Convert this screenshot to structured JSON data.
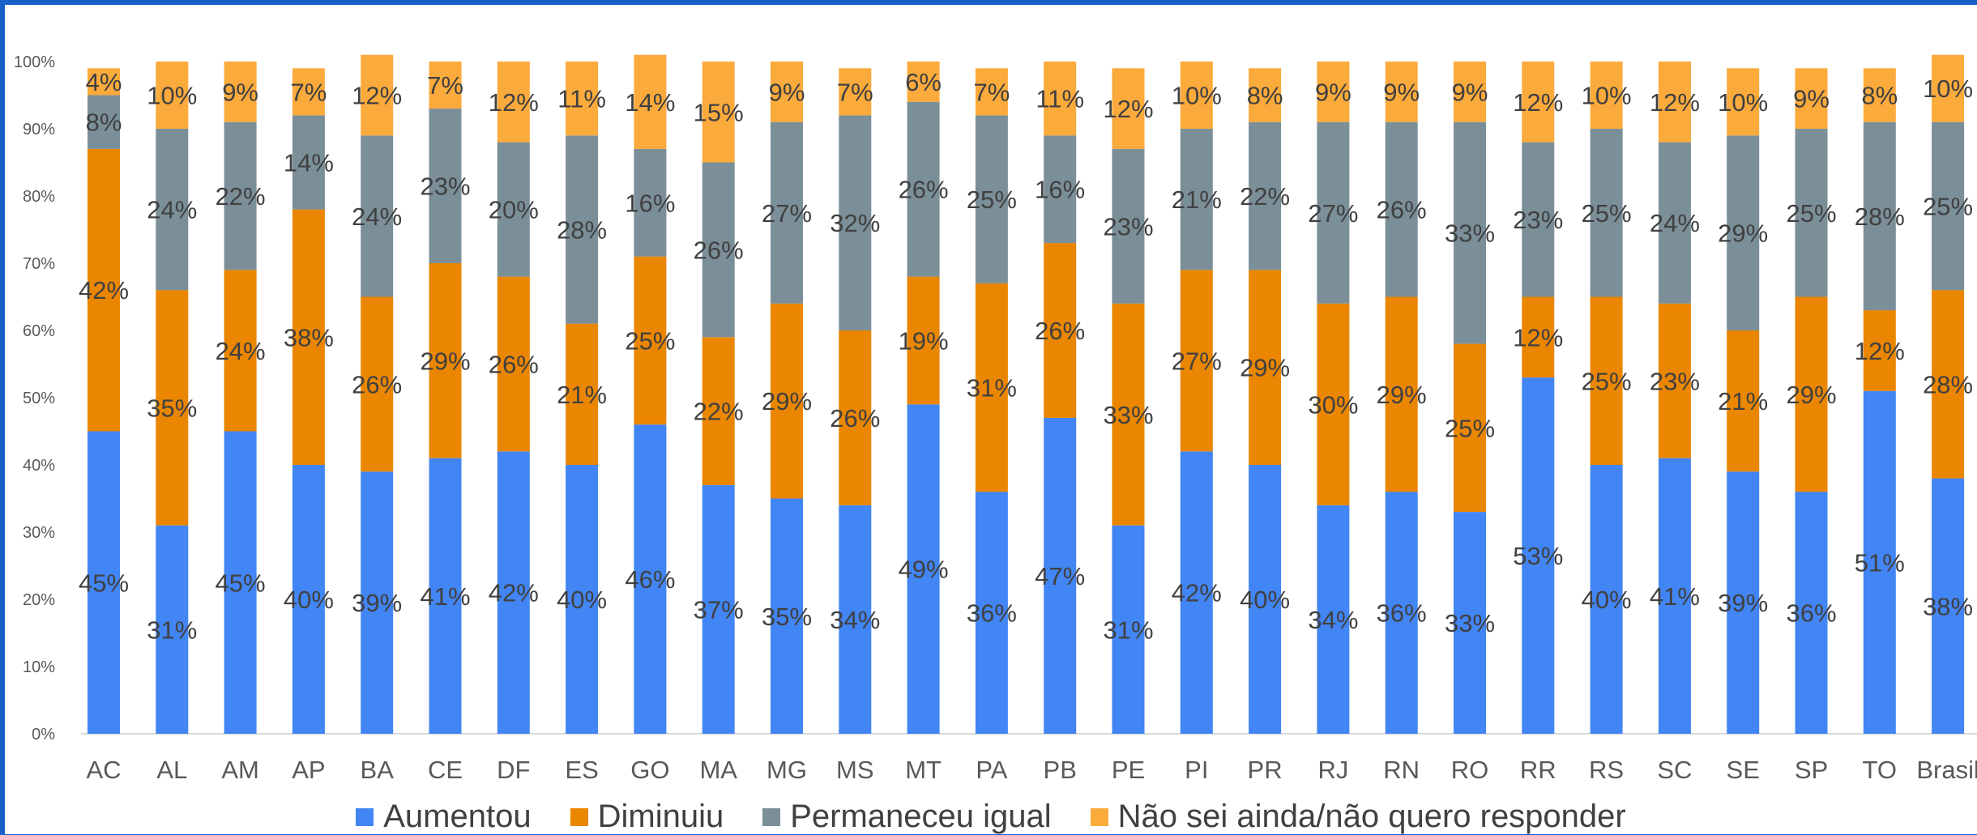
{
  "chart_data": {
    "type": "bar",
    "stacked": true,
    "categories": [
      "AC",
      "AL",
      "AM",
      "AP",
      "BA",
      "CE",
      "DF",
      "ES",
      "GO",
      "MA",
      "MG",
      "MS",
      "MT",
      "PA",
      "PB",
      "PE",
      "PI",
      "PR",
      "RJ",
      "RN",
      "RO",
      "RR",
      "RS",
      "SC",
      "SE",
      "SP",
      "TO",
      "Brasil"
    ],
    "series": [
      {
        "name": "Aumentou",
        "color": "#4285f4",
        "values": [
          45,
          31,
          45,
          40,
          39,
          41,
          42,
          40,
          46,
          37,
          35,
          34,
          49,
          36,
          47,
          31,
          42,
          40,
          34,
          36,
          33,
          53,
          40,
          41,
          39,
          36,
          51,
          38
        ]
      },
      {
        "name": "Diminuiu",
        "color": "#ea8600",
        "values": [
          42,
          35,
          24,
          38,
          26,
          29,
          26,
          21,
          25,
          22,
          29,
          26,
          19,
          31,
          26,
          33,
          27,
          29,
          30,
          29,
          25,
          12,
          25,
          23,
          21,
          29,
          12,
          28
        ]
      },
      {
        "name": "Permaneceu igual",
        "color": "#7b8f99",
        "values": [
          8,
          24,
          22,
          14,
          24,
          23,
          20,
          28,
          16,
          26,
          27,
          32,
          26,
          25,
          16,
          23,
          21,
          22,
          27,
          26,
          33,
          23,
          25,
          24,
          29,
          25,
          28,
          25
        ]
      },
      {
        "name": "Não sei ainda/não quero responder",
        "color": "#fbaa3c",
        "values": [
          4,
          10,
          9,
          7,
          12,
          7,
          12,
          11,
          14,
          15,
          9,
          7,
          6,
          7,
          11,
          12,
          10,
          8,
          9,
          9,
          9,
          12,
          10,
          12,
          10,
          9,
          8,
          10
        ]
      }
    ],
    "y_ticks": [
      "0%",
      "10%",
      "20%",
      "30%",
      "40%",
      "50%",
      "60%",
      "70%",
      "80%",
      "90%",
      "100%"
    ],
    "ylim": [
      0,
      100
    ],
    "grid": false,
    "legend_position": "bottom"
  }
}
